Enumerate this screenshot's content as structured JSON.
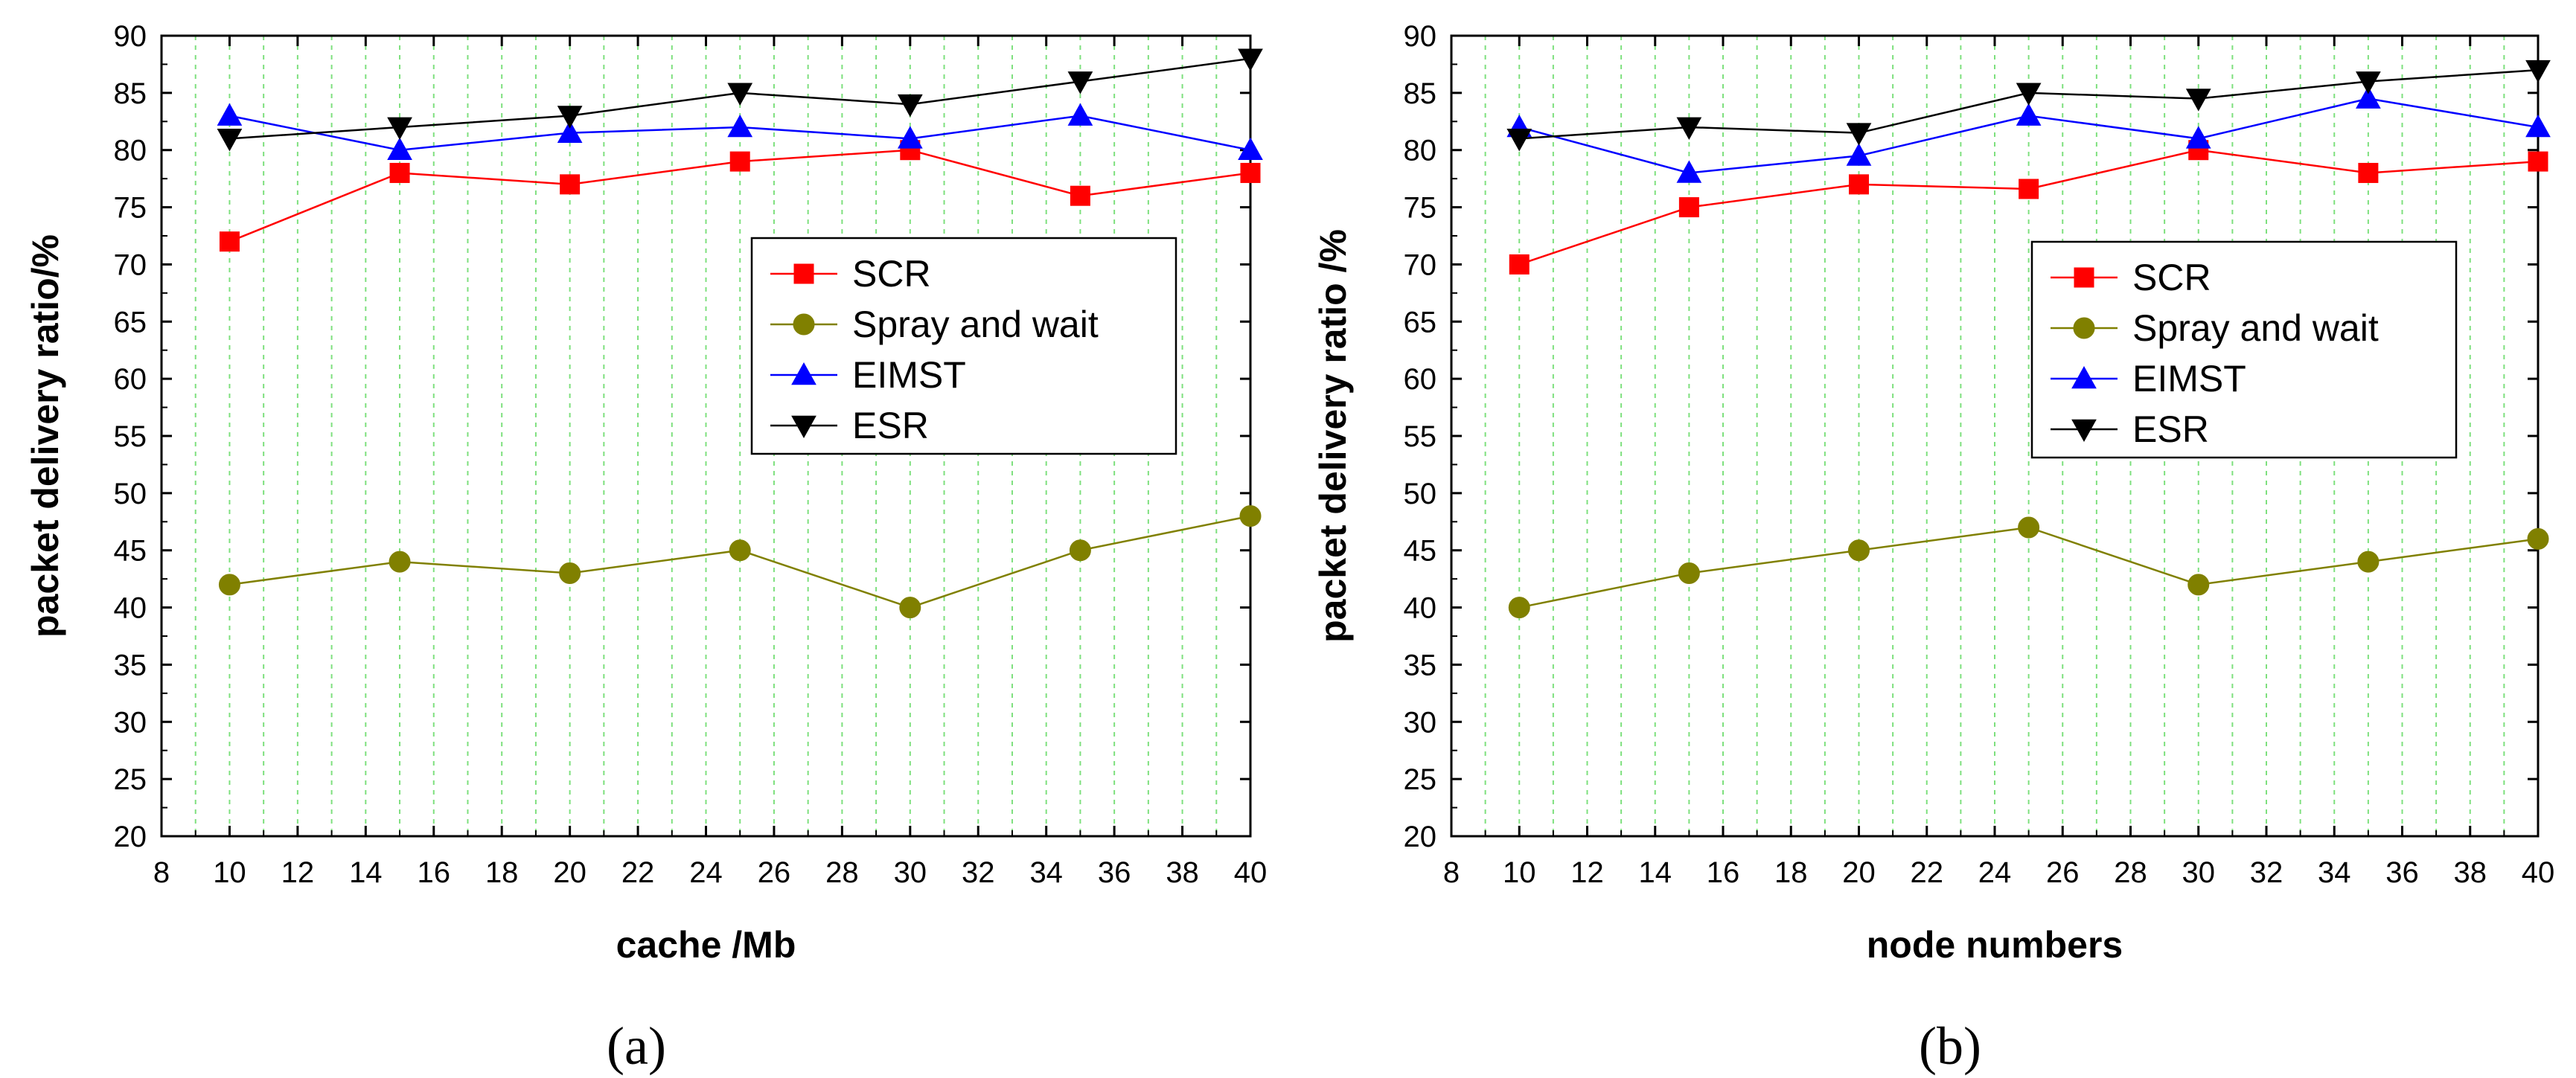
{
  "chart_data": [
    {
      "type": "line",
      "caption": "(a)",
      "xlabel": "cache /Mb",
      "ylabel": "packet delivery ratio/%",
      "xlim": [
        8,
        40
      ],
      "ylim": [
        20,
        90
      ],
      "xticks": [
        "8",
        "10",
        "12",
        "14",
        "16",
        "18",
        "20",
        "22",
        "24",
        "26",
        "28",
        "30",
        "32",
        "34",
        "36",
        "38",
        "40"
      ],
      "yticks": [
        "20",
        "25",
        "30",
        "35",
        "40",
        "45",
        "50",
        "55",
        "60",
        "65",
        "70",
        "75",
        "80",
        "85",
        "90"
      ],
      "x": [
        10,
        15,
        20,
        25,
        30,
        35,
        40
      ],
      "legend_position": "center-right",
      "series": [
        {
          "name": "SCR",
          "color": "#ff0000",
          "marker": "square",
          "values": [
            72,
            78,
            77,
            79,
            80,
            76,
            78
          ]
        },
        {
          "name": "Spray and wait",
          "color": "#808000",
          "marker": "circle",
          "values": [
            42,
            44,
            43,
            45,
            40,
            45,
            48
          ]
        },
        {
          "name": "EIMST",
          "color": "#0000ff",
          "marker": "triangle-up",
          "values": [
            83,
            80,
            81.5,
            82,
            81,
            83,
            80
          ]
        },
        {
          "name": "ESR",
          "color": "#000000",
          "marker": "triangle-down",
          "values": [
            81,
            82,
            83,
            85,
            84,
            86,
            88
          ]
        }
      ]
    },
    {
      "type": "line",
      "caption": "(b)",
      "xlabel": "node numbers",
      "ylabel": "packet delivery ratio /%",
      "xlim": [
        8,
        40
      ],
      "ylim": [
        20,
        90
      ],
      "xticks": [
        "8",
        "10",
        "12",
        "14",
        "16",
        "18",
        "20",
        "22",
        "24",
        "26",
        "28",
        "30",
        "32",
        "34",
        "36",
        "38",
        "40"
      ],
      "yticks": [
        "20",
        "25",
        "30",
        "35",
        "40",
        "45",
        "50",
        "55",
        "60",
        "65",
        "70",
        "75",
        "80",
        "85",
        "90"
      ],
      "x": [
        10,
        15,
        20,
        25,
        30,
        35,
        40
      ],
      "legend_position": "center-right",
      "series": [
        {
          "name": "SCR",
          "color": "#ff0000",
          "marker": "square",
          "values": [
            70,
            75,
            77,
            76.6,
            80,
            78,
            79
          ]
        },
        {
          "name": "Spray and wait",
          "color": "#808000",
          "marker": "circle",
          "values": [
            40,
            43,
            45,
            47,
            42,
            44,
            46
          ]
        },
        {
          "name": "EIMST",
          "color": "#0000ff",
          "marker": "triangle-up",
          "values": [
            82,
            78,
            79.5,
            83,
            81,
            84.5,
            82
          ]
        },
        {
          "name": "ESR",
          "color": "#000000",
          "marker": "triangle-down",
          "values": [
            81,
            82,
            81.5,
            85,
            84.5,
            86,
            87
          ]
        }
      ]
    }
  ]
}
